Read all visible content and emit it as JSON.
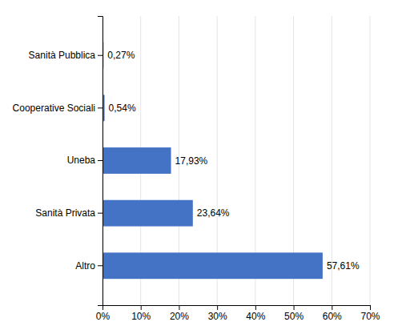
{
  "chart_data": {
    "type": "bar",
    "orientation": "horizontal",
    "categories": [
      "Altro",
      "Sanità Privata",
      "Uneba",
      "Cooperative Sociali",
      "Sanità Pubblica"
    ],
    "values": [
      57.61,
      23.64,
      17.93,
      0.54,
      0.27
    ],
    "value_labels": [
      "57,61%",
      "23,64%",
      "17,93%",
      "0,54%",
      "0,27%"
    ],
    "data_labels": true,
    "color": "#4472c4",
    "xlim": [
      0,
      70
    ],
    "xticks": [
      {
        "value": 0,
        "label": "0%"
      },
      {
        "value": 10,
        "label": "10%"
      },
      {
        "value": 20,
        "label": "20%"
      },
      {
        "value": 30,
        "label": "30%"
      },
      {
        "value": 40,
        "label": "40%"
      },
      {
        "value": 50,
        "label": "50%"
      },
      {
        "value": 60,
        "label": "60%"
      },
      {
        "value": 70,
        "label": "70%"
      }
    ],
    "grid": true
  }
}
